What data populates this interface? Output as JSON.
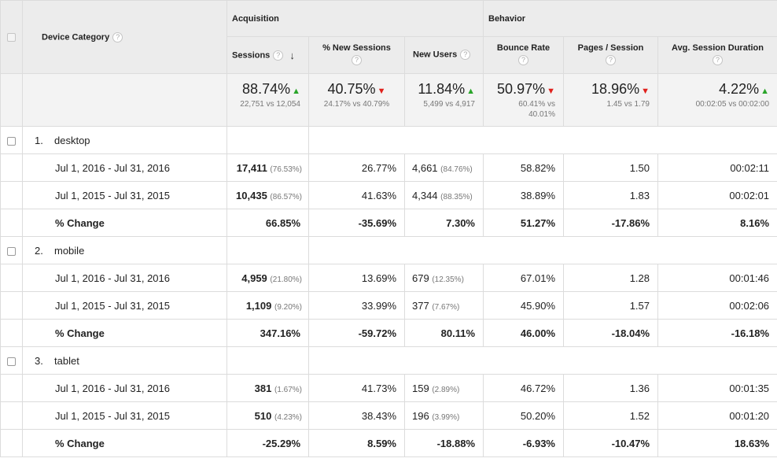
{
  "header": {
    "device_category": "Device Category",
    "acquisition": "Acquisition",
    "behavior": "Behavior",
    "question_glyph": "?",
    "sort_icon": "↓",
    "columns": {
      "sessions": "Sessions",
      "pct_new_sessions": "% New Sessions",
      "new_users": "New Users",
      "bounce_rate": "Bounce Rate",
      "pages_session": "Pages / Session",
      "avg_session_duration": "Avg. Session Duration"
    }
  },
  "summary": {
    "sessions": {
      "pct": "88.74%",
      "sub": "22,751 vs 12,054",
      "trend": "up"
    },
    "pct_new_sessions": {
      "pct": "40.75%",
      "sub": "24.17% vs 40.79%",
      "trend": "down"
    },
    "new_users": {
      "pct": "11.84%",
      "sub": "5,499 vs 4,917",
      "trend": "up"
    },
    "bounce_rate": {
      "pct": "50.97%",
      "sub": "60.41% vs 40.01%",
      "trend": "down"
    },
    "pages_session": {
      "pct": "18.96%",
      "sub": "1.45 vs 1.79",
      "trend": "down"
    },
    "avg_session_duration": {
      "pct": "4.22%",
      "sub": "00:02:05 vs 00:02:00",
      "trend": "up"
    }
  },
  "colors": {
    "up": "#2aa52a",
    "down": "#e0201b",
    "header_bg": "#ececec",
    "summary_bg": "#f3f3f3"
  },
  "groups": [
    {
      "index": "1.",
      "name": "desktop",
      "rows": [
        {
          "label": "Jul 1, 2016 - Jul 31, 2016",
          "sessions": "17,411",
          "sessions_pct": "(76.53%)",
          "new_sessions": "26.77%",
          "new_users": "4,661",
          "new_users_pct": "(84.76%)",
          "bounce": "58.82%",
          "pages": "1.50",
          "duration": "00:02:11"
        },
        {
          "label": "Jul 1, 2015 - Jul 31, 2015",
          "sessions": "10,435",
          "sessions_pct": "(86.57%)",
          "new_sessions": "41.63%",
          "new_users": "4,344",
          "new_users_pct": "(88.35%)",
          "bounce": "38.89%",
          "pages": "1.83",
          "duration": "00:02:01"
        }
      ],
      "change": {
        "label": "% Change",
        "sessions": "66.85%",
        "new_sessions": "-35.69%",
        "new_users": "7.30%",
        "bounce": "51.27%",
        "pages": "-17.86%",
        "duration": "8.16%"
      }
    },
    {
      "index": "2.",
      "name": "mobile",
      "rows": [
        {
          "label": "Jul 1, 2016 - Jul 31, 2016",
          "sessions": "4,959",
          "sessions_pct": "(21.80%)",
          "new_sessions": "13.69%",
          "new_users": "679",
          "new_users_pct": "(12.35%)",
          "bounce": "67.01%",
          "pages": "1.28",
          "duration": "00:01:46"
        },
        {
          "label": "Jul 1, 2015 - Jul 31, 2015",
          "sessions": "1,109",
          "sessions_pct": "(9.20%)",
          "new_sessions": "33.99%",
          "new_users": "377",
          "new_users_pct": "(7.67%)",
          "bounce": "45.90%",
          "pages": "1.57",
          "duration": "00:02:06"
        }
      ],
      "change": {
        "label": "% Change",
        "sessions": "347.16%",
        "new_sessions": "-59.72%",
        "new_users": "80.11%",
        "bounce": "46.00%",
        "pages": "-18.04%",
        "duration": "-16.18%"
      }
    },
    {
      "index": "3.",
      "name": "tablet",
      "rows": [
        {
          "label": "Jul 1, 2016 - Jul 31, 2016",
          "sessions": "381",
          "sessions_pct": "(1.67%)",
          "new_sessions": "41.73%",
          "new_users": "159",
          "new_users_pct": "(2.89%)",
          "bounce": "46.72%",
          "pages": "1.36",
          "duration": "00:01:35"
        },
        {
          "label": "Jul 1, 2015 - Jul 31, 2015",
          "sessions": "510",
          "sessions_pct": "(4.23%)",
          "new_sessions": "38.43%",
          "new_users": "196",
          "new_users_pct": "(3.99%)",
          "bounce": "50.20%",
          "pages": "1.52",
          "duration": "00:01:20"
        }
      ],
      "change": {
        "label": "% Change",
        "sessions": "-25.29%",
        "new_sessions": "8.59%",
        "new_users": "-18.88%",
        "bounce": "-6.93%",
        "pages": "-10.47%",
        "duration": "18.63%"
      }
    }
  ]
}
